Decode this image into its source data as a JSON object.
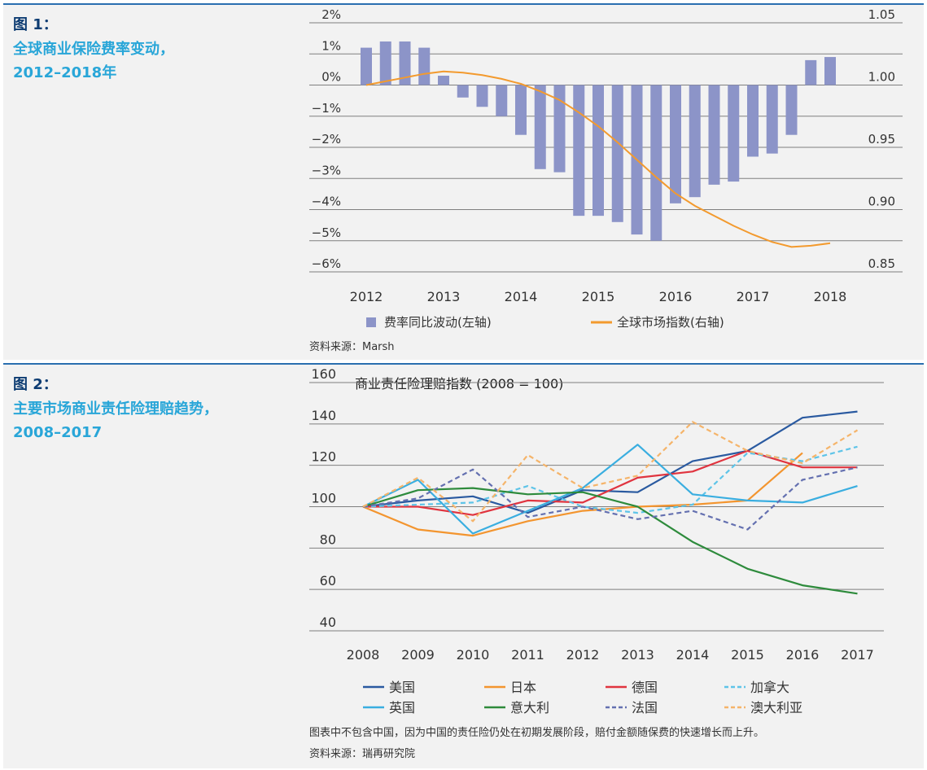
{
  "figure1": {
    "label": "图 1：",
    "title_lines": [
      "全球商业保险费率变动，",
      "2012–2018年"
    ],
    "source": "资料来源：Marsh",
    "legend": {
      "bars": "费率同比波动(左轴)",
      "line": "全球市场指数(右轴)"
    }
  },
  "figure2": {
    "label": "图 2：",
    "title_lines": [
      "主要市场商业责任险理赔趋势，",
      "2008–2017"
    ],
    "chart_title": "商业责任险理赔指数 (2008 = 100)",
    "note": "图表中不包含中国，因为中国的责任险仍处在初期发展阶段，赔付金额随保费的快速增长而上升。",
    "source": "资料来源：瑞再研究院"
  },
  "colors": {
    "frame_accent": "#2a6fb0",
    "title_dark": "#0d3c72",
    "title_light": "#29a6d8",
    "bars": "#8c94c8",
    "index_line": "#f39a2e",
    "usa": "#2a5aa0",
    "japan": "#f3952f",
    "germany": "#e0343f",
    "canada": "#5ec4e8",
    "uk": "#3aaee0",
    "italy": "#2e8b3c",
    "france": "#6470b0",
    "australia": "#f5b46a"
  },
  "chart_data": [
    {
      "type": "bar",
      "description_axes": "dual",
      "x_ticks": [
        "2012",
        "2013",
        "2014",
        "2015",
        "2016",
        "2017",
        "2018"
      ],
      "y_left_ticks": [
        "2%",
        "1%",
        "0%",
        "−1%",
        "−2%",
        "−3%",
        "−4%",
        "−5%",
        "−6%"
      ],
      "y_left_lim": [
        -6,
        2
      ],
      "y_right_ticks": [
        "1.05",
        "1.00",
        "0.95",
        "0.90",
        "0.85"
      ],
      "y_right_lim": [
        0.85,
        1.05
      ],
      "grid": true,
      "series": [
        {
          "name": "费率同比波动(左轴)",
          "kind": "bar",
          "axis": "left",
          "x": [
            2012.0,
            2012.25,
            2012.5,
            2012.75,
            2013.0,
            2013.25,
            2013.5,
            2013.75,
            2014.0,
            2014.25,
            2014.5,
            2014.75,
            2015.0,
            2015.25,
            2015.5,
            2015.75,
            2016.0,
            2016.25,
            2016.5,
            2016.75,
            2017.0,
            2017.25,
            2017.5,
            2017.75,
            2018.0
          ],
          "values": [
            1.2,
            1.4,
            1.4,
            1.2,
            0.3,
            -0.4,
            -0.7,
            -1.0,
            -1.6,
            -2.7,
            -2.8,
            -4.2,
            -4.2,
            -4.4,
            -4.8,
            -5.0,
            -3.8,
            -3.6,
            -3.2,
            -3.1,
            -2.3,
            -2.2,
            -1.6,
            0.8,
            0.9
          ]
        },
        {
          "name": "全球市场指数(右轴)",
          "kind": "line",
          "axis": "right",
          "x": [
            2012.0,
            2012.25,
            2012.5,
            2012.75,
            2013.0,
            2013.25,
            2013.5,
            2013.75,
            2014.0,
            2014.25,
            2014.5,
            2014.75,
            2015.0,
            2015.25,
            2015.5,
            2015.75,
            2016.0,
            2016.25,
            2016.5,
            2016.75,
            2017.0,
            2017.25,
            2017.5,
            2017.75,
            2018.0
          ],
          "values": [
            1.0,
            1.003,
            1.006,
            1.009,
            1.011,
            1.01,
            1.008,
            1.005,
            1.001,
            0.995,
            0.988,
            0.978,
            0.967,
            0.954,
            0.94,
            0.926,
            0.913,
            0.903,
            0.895,
            0.887,
            0.88,
            0.874,
            0.87,
            0.871,
            0.873
          ]
        }
      ]
    },
    {
      "type": "line",
      "title": "商业责任险理赔指数 (2008 = 100)",
      "x": [
        "2008",
        "2009",
        "2010",
        "2011",
        "2012",
        "2013",
        "2014",
        "2015",
        "2016",
        "2017"
      ],
      "y_ticks": [
        "160",
        "140",
        "120",
        "100",
        "80",
        "60",
        "40"
      ],
      "ylim": [
        40,
        160
      ],
      "grid": true,
      "legend_position": "bottom",
      "series": [
        {
          "name": "美国",
          "color_key": "usa",
          "dashed": false,
          "values": [
            100,
            103,
            105,
            97,
            108,
            107,
            122,
            127,
            143,
            146
          ]
        },
        {
          "name": "日本",
          "color_key": "japan",
          "dashed": false,
          "values": [
            100,
            89,
            86,
            93,
            98,
            100,
            101,
            103,
            126,
            null
          ]
        },
        {
          "name": "德国",
          "color_key": "germany",
          "dashed": false,
          "values": [
            100,
            100,
            96,
            103,
            102,
            114,
            117,
            127,
            119,
            119
          ]
        },
        {
          "name": "加拿大",
          "color_key": "canada",
          "dashed": true,
          "values": [
            100,
            101,
            102,
            110,
            100,
            97,
            101,
            126,
            122,
            129
          ]
        },
        {
          "name": "英国",
          "color_key": "uk",
          "dashed": false,
          "values": [
            100,
            113,
            87,
            98,
            109,
            130,
            106,
            103,
            102,
            110
          ]
        },
        {
          "name": "意大利",
          "color_key": "italy",
          "dashed": false,
          "values": [
            100,
            108,
            109,
            106,
            107,
            100,
            83,
            70,
            62,
            58
          ]
        },
        {
          "name": "法国",
          "color_key": "france",
          "dashed": true,
          "values": [
            100,
            104,
            118,
            95,
            100,
            94,
            98,
            89,
            113,
            119
          ]
        },
        {
          "name": "澳大利亚",
          "color_key": "australia",
          "dashed": true,
          "values": [
            100,
            114,
            93,
            125,
            109,
            115,
            141,
            127,
            121,
            137
          ]
        }
      ]
    }
  ]
}
